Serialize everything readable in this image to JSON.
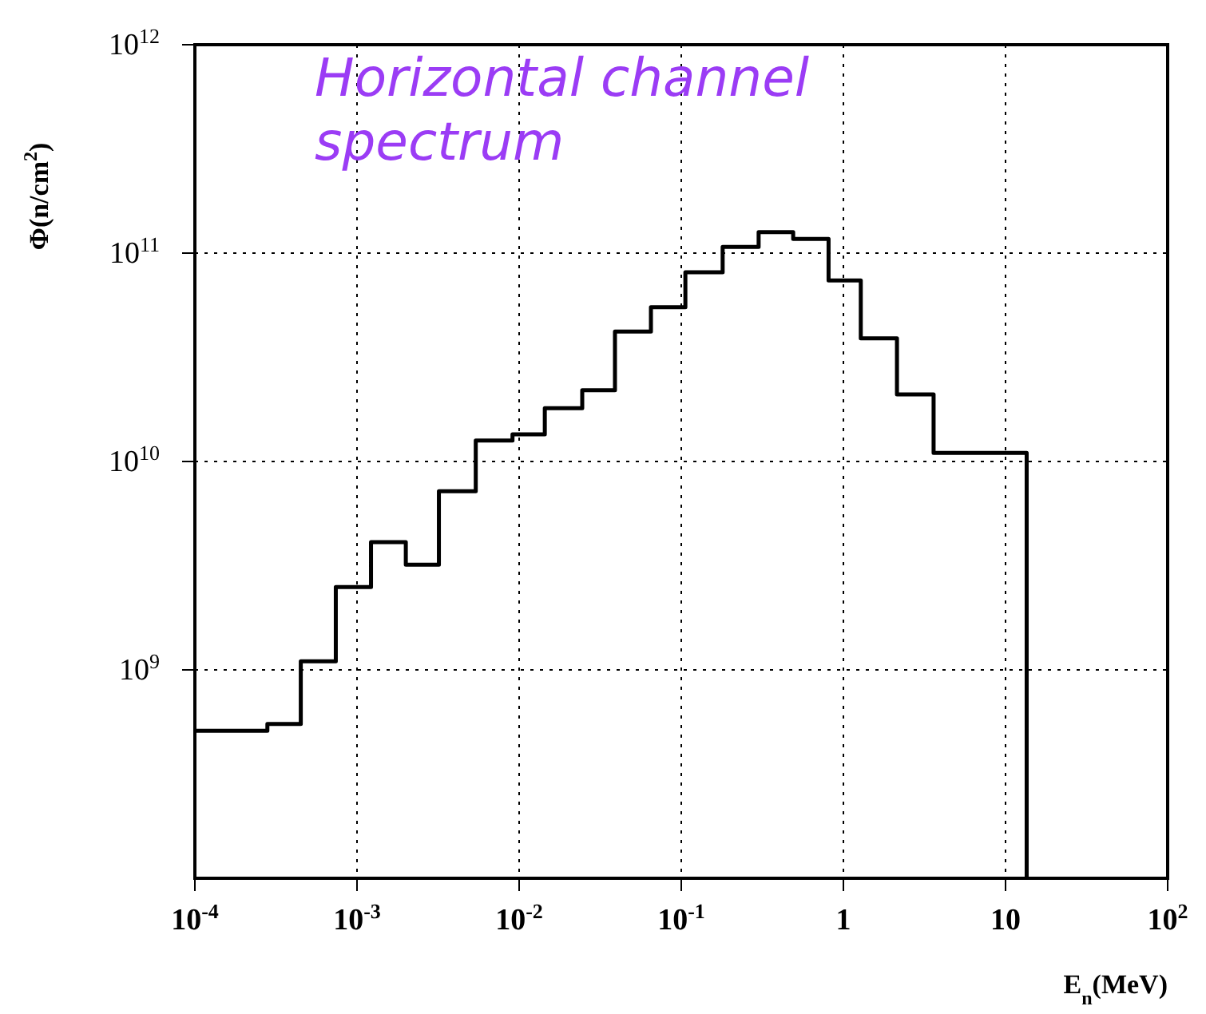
{
  "chart_data": {
    "type": "histogram",
    "title": "Horizontal channel spectrum",
    "xlabel": "E$_{n}$(MeV)",
    "ylabel": "Φ(n/cm$^{2}$)",
    "bins": [
      0.0001,
      0.00028,
      0.00045,
      0.00074,
      0.00122,
      0.002,
      0.0032,
      0.0054,
      0.0091,
      0.0144,
      0.0245,
      0.039,
      0.065,
      0.106,
      0.18,
      0.3,
      0.49,
      0.81,
      1.28,
      2.14,
      3.6,
      13.5
    ],
    "values": [
      510000000.0,
      550000000.0,
      1100000000.0,
      2500000000.0,
      4100000000.0,
      3200000000.0,
      7200000000.0,
      12600000000.0,
      13500000000.0,
      18000000000.0,
      22000000000.0,
      42000000000.0,
      55000000000.0,
      81000000000.0,
      107000000000.0,
      126000000000.0,
      117000000000.0,
      74000000000.0,
      39000000000.0,
      21000000000.0,
      11000000000.0
    ],
    "color": "#000000",
    "log": "xy",
    "xlim": [
      0.0001,
      100
    ],
    "xticks": [
      {
        "value": 0.0001,
        "label": "10$^{-4}$"
      },
      {
        "value": 0.001,
        "label": "10$^{-3}$"
      },
      {
        "value": 0.01,
        "label": "10$^{-2}$"
      },
      {
        "value": 0.1,
        "label": "10$^{-1}$"
      },
      1,
      10,
      {
        "value": 100,
        "label": "10$^{2}$"
      }
    ],
    "ylim": [
      100000000.0,
      1000000000000.0
    ],
    "yticks": [
      {
        "value": 1000000000.0,
        "label": "10$^{9}$"
      },
      {
        "value": 10000000000.0,
        "label": "10$^{10}$"
      },
      {
        "value": 100000000000.0,
        "label": "10$^{11}$"
      },
      {
        "value": 1000000000000.0,
        "label": "10$^{12}$"
      }
    ],
    "grid": true
  }
}
